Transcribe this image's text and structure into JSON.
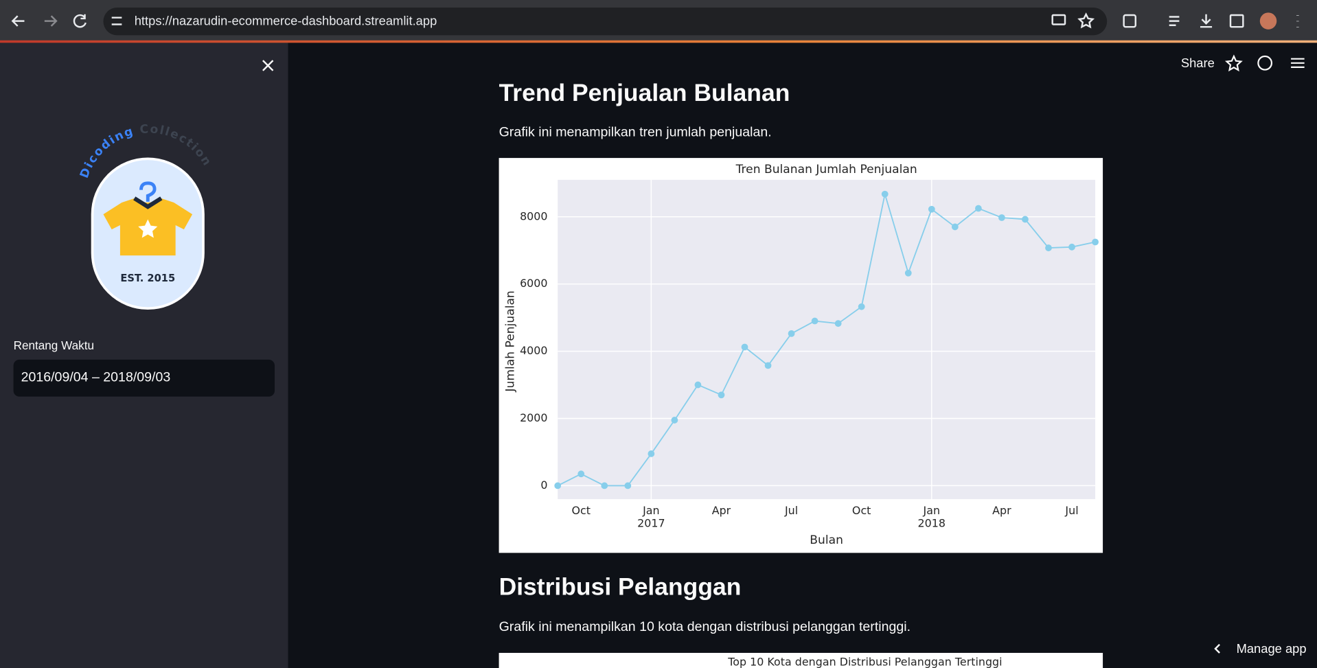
{
  "browser": {
    "url": "https://nazarudin-ecommerce-dashboard.streamlit.app"
  },
  "sidebar": {
    "logo": {
      "arc_words": [
        "Dicoding",
        "Collection"
      ],
      "badge_text": "EST. 2015"
    },
    "date_input": {
      "label": "Rentang Waktu",
      "value": "2016/09/04 – 2018/09/03"
    }
  },
  "header": {
    "share": "Share"
  },
  "sections": [
    {
      "title": "Trend Penjualan Bulanan",
      "description": "Grafik ini menampilkan tren jumlah penjualan."
    },
    {
      "title": "Distribusi Pelanggan",
      "description": "Grafik ini menampilkan 10 kota dengan distribusi pelanggan tertinggi."
    }
  ],
  "chart_data": {
    "type": "line",
    "title": "Tren Bulanan Jumlah Penjualan",
    "x_label": "Bulan",
    "y_label": "Jumlah Penjualan",
    "x": [
      "2016-09",
      "2016-10",
      "2016-11",
      "2016-12",
      "2017-01",
      "2017-02",
      "2017-03",
      "2017-04",
      "2017-05",
      "2017-06",
      "2017-07",
      "2017-08",
      "2017-09",
      "2017-10",
      "2017-11",
      "2017-12",
      "2018-01",
      "2018-02",
      "2018-03",
      "2018-04",
      "2018-05",
      "2018-06",
      "2018-07",
      "2018-08"
    ],
    "values": [
      0,
      350,
      0,
      0,
      950,
      1950,
      3000,
      2700,
      4125,
      3575,
      4525,
      4900,
      4825,
      5325,
      8675,
      6325,
      8225,
      7700,
      8250,
      7975,
      7925,
      7075,
      7100,
      7250
    ],
    "color": "#87ceeb",
    "xlim": [
      "2016-09",
      "2018-08"
    ],
    "ylim": [
      -400,
      9100
    ],
    "xticks": [
      {
        "value": "2016-10",
        "label": "Oct"
      },
      {
        "value": "2017-01",
        "label": "Jan\n2017"
      },
      {
        "value": "2017-04",
        "label": "Apr"
      },
      {
        "value": "2017-07",
        "label": "Jul"
      },
      {
        "value": "2017-10",
        "label": "Oct"
      },
      {
        "value": "2018-01",
        "label": "Jan\n2018"
      },
      {
        "value": "2018-04",
        "label": "Apr"
      },
      {
        "value": "2018-07",
        "label": "Jul"
      }
    ],
    "yticks": [
      0,
      2000,
      4000,
      6000,
      8000
    ],
    "grid": true,
    "background": "#eaeaf2"
  },
  "next_chart_title": "Top 10 Kota dengan Distribusi Pelanggan Tertinggi",
  "footer": {
    "manage_app": "Manage app"
  }
}
